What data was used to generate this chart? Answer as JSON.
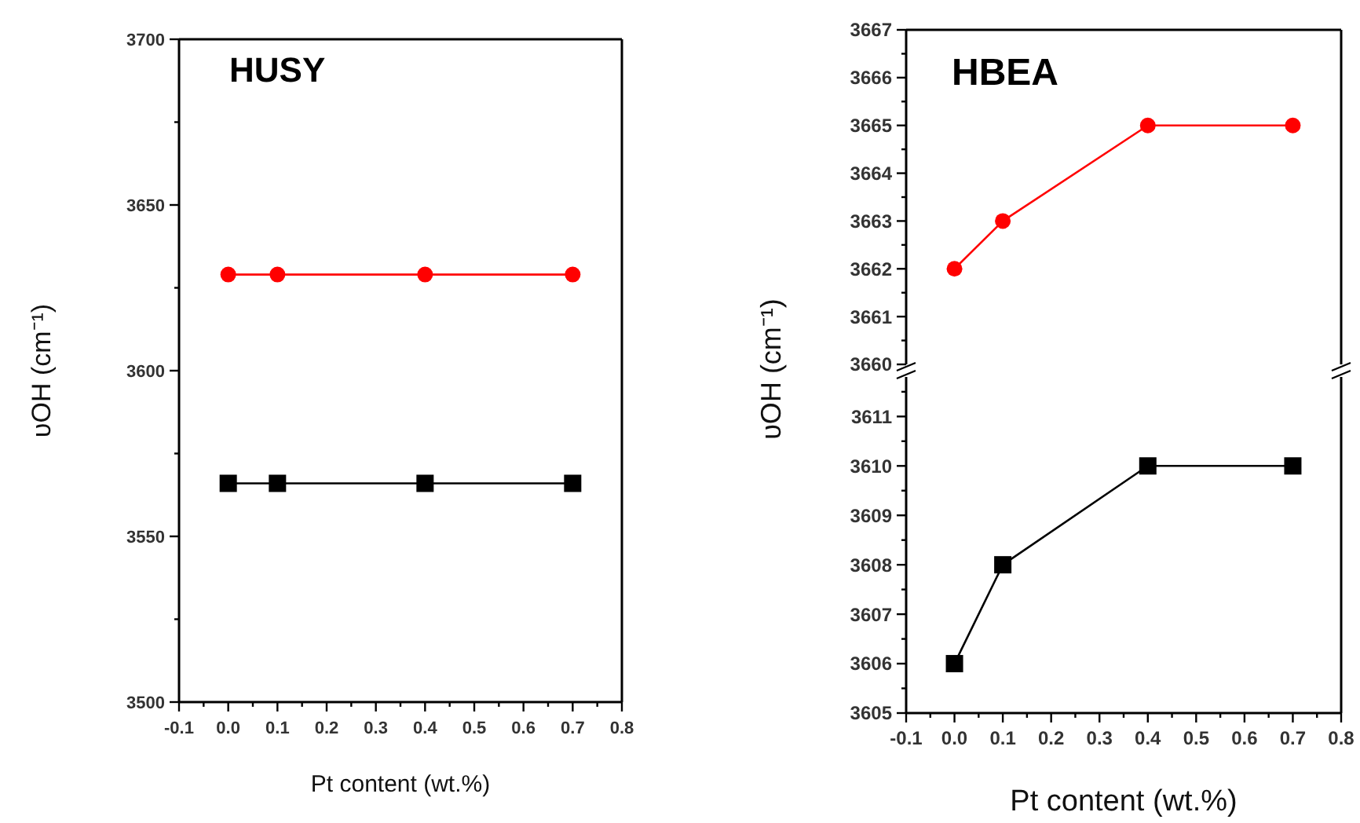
{
  "chart_data": [
    {
      "type": "line",
      "title": "HUSY",
      "xlabel": "Pt content (wt.%)",
      "ylabel": "υOH (cm⁻¹)",
      "x": [
        0,
        0.1,
        0.4,
        0.7
      ],
      "series": [
        {
          "color": "#ff0000",
          "marker": "circle",
          "values": [
            3629,
            3629,
            3629,
            3629
          ]
        },
        {
          "color": "#000000",
          "marker": "square",
          "values": [
            3566,
            3566,
            3566,
            3566
          ]
        }
      ],
      "xlim": [
        -0.1,
        0.8
      ],
      "ylim": [
        3500,
        3700
      ],
      "xticks": [
        {
          "value": -0.1,
          "label": "-0.1"
        },
        {
          "value": -0.05,
          "label": null
        },
        {
          "value": 0,
          "label": "0.0"
        },
        {
          "value": 0.05,
          "label": null
        },
        {
          "value": 0.1,
          "label": "0.1"
        },
        {
          "value": 0.15,
          "label": null
        },
        {
          "value": 0.2,
          "label": "0.2"
        },
        {
          "value": 0.25,
          "label": null
        },
        {
          "value": 0.3,
          "label": "0.3"
        },
        {
          "value": 0.35,
          "label": null
        },
        {
          "value": 0.4,
          "label": "0.4"
        },
        {
          "value": 0.45,
          "label": null
        },
        {
          "value": 0.5,
          "label": "0.5"
        },
        {
          "value": 0.55,
          "label": null
        },
        {
          "value": 0.6,
          "label": "0.6"
        },
        {
          "value": 0.65,
          "label": null
        },
        {
          "value": 0.7,
          "label": "0.7"
        },
        {
          "value": 0.75,
          "label": null
        },
        {
          "value": 0.8,
          "label": "0.8"
        }
      ],
      "yticks": [
        3500,
        {
          "value": 3525,
          "label": null
        },
        3550,
        {
          "value": 3575,
          "label": null
        },
        3600,
        {
          "value": 3625,
          "label": null
        },
        3650,
        {
          "value": 3675,
          "label": null
        },
        3700
      ],
      "grid": false
    },
    {
      "type": "line",
      "title": "HBEA",
      "ylabel": "υOH (cm⁻¹)",
      "x": [
        0,
        0.1,
        0.4,
        0.7
      ],
      "series": [
        {
          "color": "#ff0000",
          "marker": "circle",
          "values": [
            3662,
            3663,
            3665,
            3665
          ]
        }
      ],
      "xlim": [
        -0.1,
        0.8
      ],
      "ylim": [
        3660,
        3667
      ],
      "yticks": [
        3660,
        {
          "value": 3660.5,
          "label": null
        },
        3661,
        {
          "value": 3661.5,
          "label": null
        },
        3662,
        {
          "value": 3662.5,
          "label": null
        },
        3663,
        {
          "value": 3663.5,
          "label": null
        },
        3664,
        {
          "value": 3664.5,
          "label": null
        },
        3665,
        {
          "value": 3665.5,
          "label": null
        },
        3666,
        {
          "value": 3666.5,
          "label": null
        },
        3667
      ],
      "tick_labels": "y",
      "grid": false
    },
    {
      "type": "line",
      "xlabel": "Pt content (wt.%)",
      "x": [
        0,
        0.1,
        0.4,
        0.7
      ],
      "series": [
        {
          "color": "#000000",
          "marker": "square",
          "values": [
            3606,
            3608,
            3610,
            3610
          ]
        }
      ],
      "xlim": [
        -0.1,
        0.8
      ],
      "ylim": [
        3605,
        3611.8
      ],
      "xticks": [
        {
          "value": -0.1,
          "label": "-0.1"
        },
        {
          "value": -0.05,
          "label": null
        },
        {
          "value": 0,
          "label": "0.0"
        },
        {
          "value": 0.05,
          "label": null
        },
        {
          "value": 0.1,
          "label": "0.1"
        },
        {
          "value": 0.15,
          "label": null
        },
        {
          "value": 0.2,
          "label": "0.2"
        },
        {
          "value": 0.25,
          "label": null
        },
        {
          "value": 0.3,
          "label": "0.3"
        },
        {
          "value": 0.35,
          "label": null
        },
        {
          "value": 0.4,
          "label": "0.4"
        },
        {
          "value": 0.45,
          "label": null
        },
        {
          "value": 0.5,
          "label": "0.5"
        },
        {
          "value": 0.55,
          "label": null
        },
        {
          "value": 0.6,
          "label": "0.6"
        },
        {
          "value": 0.65,
          "label": null
        },
        {
          "value": 0.7,
          "label": "0.7"
        },
        {
          "value": 0.75,
          "label": null
        },
        {
          "value": 0.8,
          "label": "0.8"
        }
      ],
      "yticks": [
        3605,
        {
          "value": 3605.5,
          "label": null
        },
        3606,
        {
          "value": 3606.5,
          "label": null
        },
        3607,
        {
          "value": 3607.5,
          "label": null
        },
        3608,
        {
          "value": 3608.5,
          "label": null
        },
        3609,
        {
          "value": 3609.5,
          "label": null
        },
        3610,
        {
          "value": 3610.5,
          "label": null
        },
        3611,
        {
          "value": 3611.5,
          "label": null
        }
      ],
      "grid": false
    }
  ]
}
